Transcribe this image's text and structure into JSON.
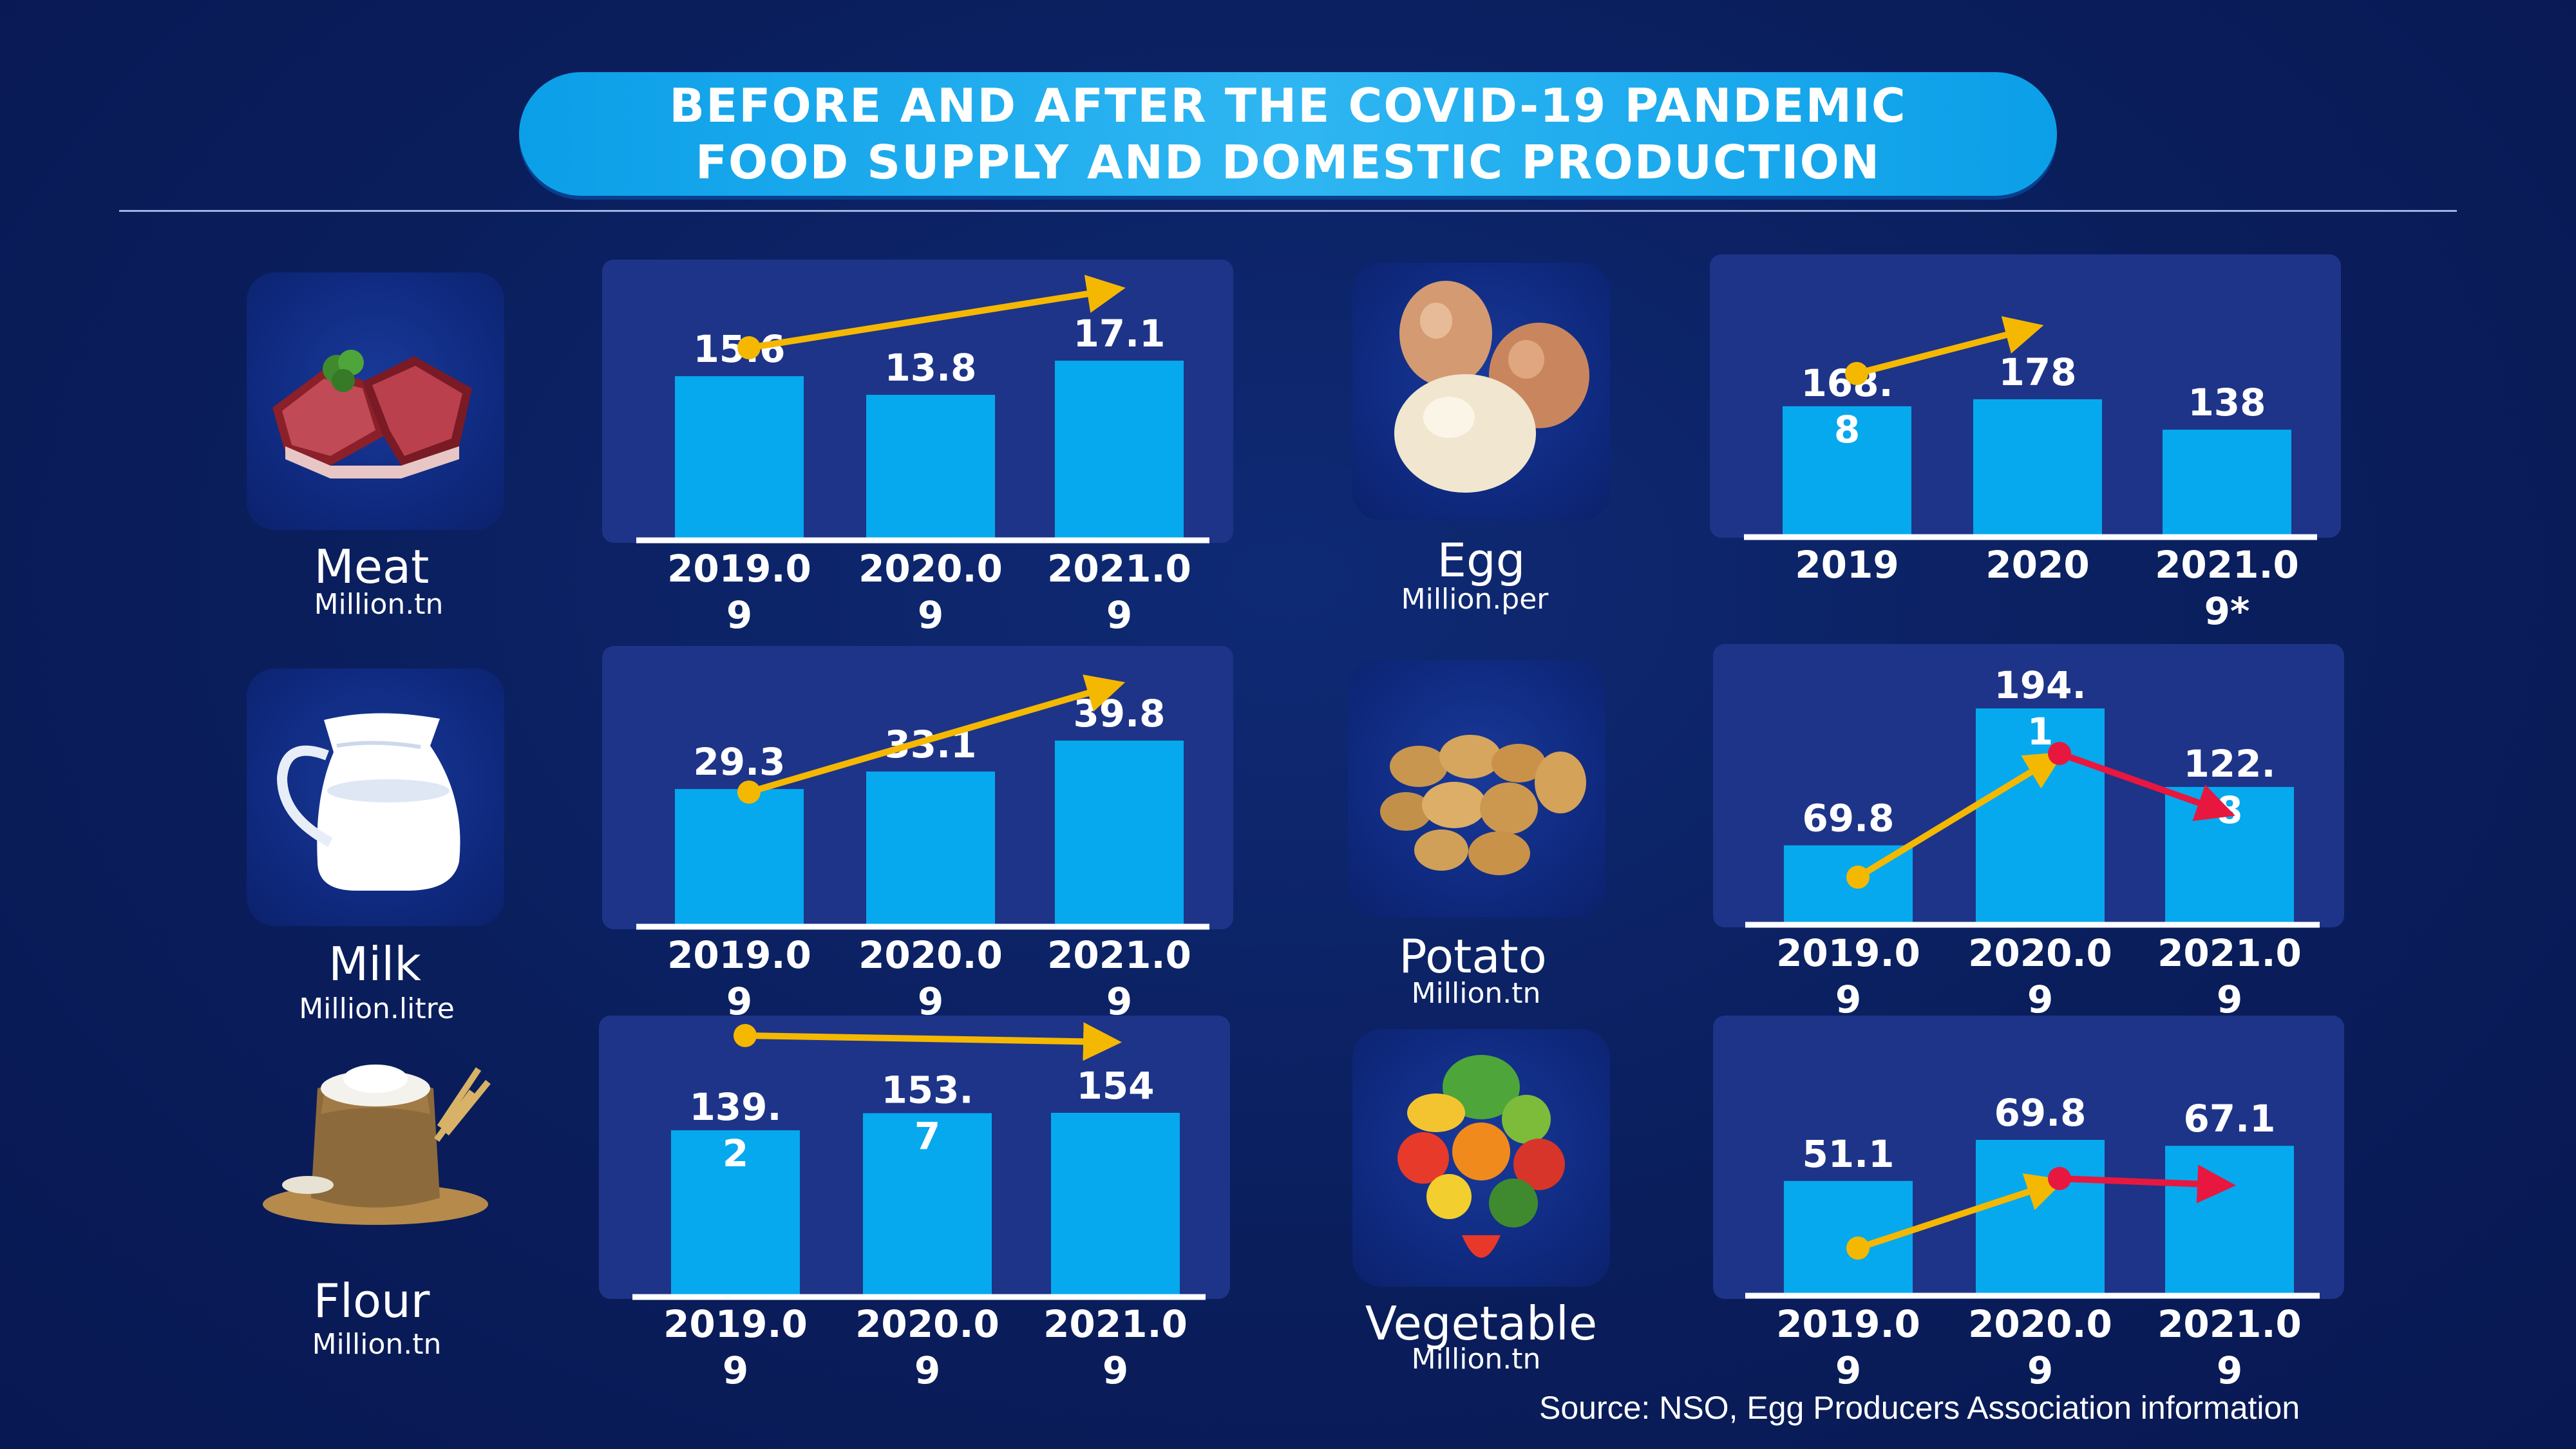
{
  "title": {
    "line1": "BEFORE AND AFTER THE COVID-19 PANDEMIC",
    "line2": "FOOD SUPPLY AND DOMESTIC PRODUCTION"
  },
  "colors": {
    "background": "#0a1f5f",
    "panel": "#1e3488",
    "bar": "#06a9ee",
    "trend_up": "#f5b800",
    "trend_down": "#e8173f"
  },
  "source": "Source: NSO, Egg Producers Association information",
  "chart_data": [
    {
      "type": "bar",
      "name": "Meat",
      "unit": "Million.tn",
      "icon": "meat-icon",
      "categories": [
        "2019.09",
        "2020.09",
        "2021.09"
      ],
      "values": [
        15.6,
        13.8,
        17.1
      ],
      "value_labels": [
        "15.6",
        "13.8",
        "17.1"
      ],
      "trend": [
        "up"
      ]
    },
    {
      "type": "bar",
      "name": "Egg",
      "unit": "Million.per",
      "icon": "egg-icon",
      "categories": [
        "2019",
        "2020",
        "2021.09*"
      ],
      "values": [
        168.8,
        178,
        138
      ],
      "value_labels": [
        "168.8",
        "178",
        "138"
      ],
      "trend": [
        "up"
      ]
    },
    {
      "type": "bar",
      "name": "Milk",
      "unit": "Million.litre",
      "icon": "milk-jug-icon",
      "categories": [
        "2019.09",
        "2020.09",
        "2021.09"
      ],
      "values": [
        29.3,
        33.1,
        39.8
      ],
      "value_labels": [
        "29.3",
        "33.1",
        "39.8"
      ],
      "trend": [
        "up"
      ]
    },
    {
      "type": "bar",
      "name": "Potato",
      "unit": "Million.tn",
      "icon": "potato-icon",
      "categories": [
        "2019.09",
        "2020.09",
        "2021.09"
      ],
      "values": [
        69.8,
        194.1,
        122.8
      ],
      "value_labels": [
        "69.8",
        "194.1",
        "122.8"
      ],
      "trend": [
        "up",
        "down"
      ]
    },
    {
      "type": "bar",
      "name": "Flour",
      "unit": "Million.tn",
      "icon": "flour-sack-icon",
      "categories": [
        "2019.09",
        "2020.09",
        "2021.09"
      ],
      "values": [
        139.2,
        153.7,
        154
      ],
      "value_labels": [
        "139.2",
        "153.7",
        "154"
      ],
      "trend": [
        "up"
      ]
    },
    {
      "type": "bar",
      "name": "Vegetable",
      "unit": "Million.tn",
      "icon": "vegetables-icon",
      "categories": [
        "2019.09",
        "2020.09",
        "2021.09"
      ],
      "values": [
        51.1,
        69.8,
        67.1
      ],
      "value_labels": [
        "51.1",
        "69.8",
        "67.1"
      ],
      "trend": [
        "up",
        "down"
      ]
    }
  ]
}
